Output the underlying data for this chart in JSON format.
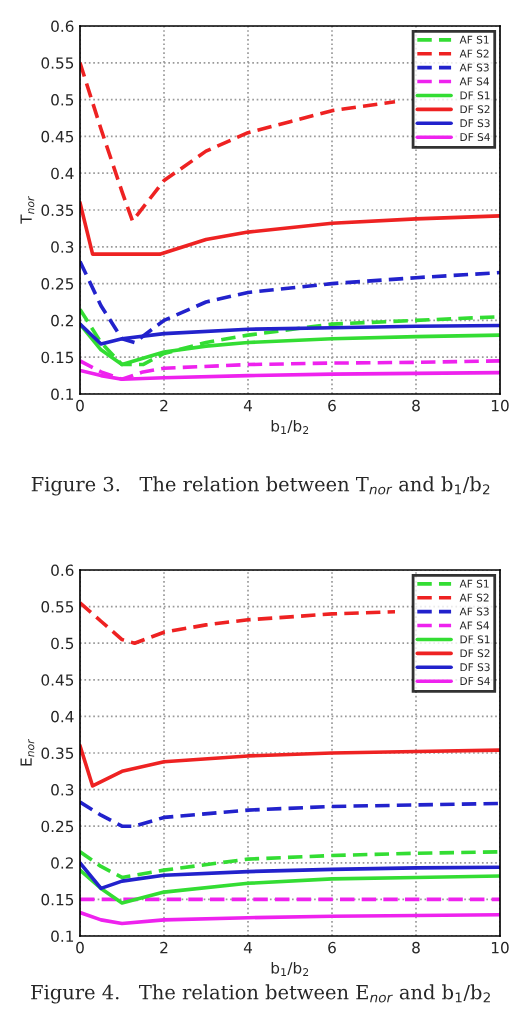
{
  "chart_data": [
    {
      "type": "line",
      "xlabel": "b$_{1}$/b$_{2}$",
      "ylabel": "T$_{nor}$",
      "annotations": [
        "Figure 3.   The relation between T$_{nor}$ and b$_{1}$/b$_{2}$"
      ],
      "xlim": [
        0,
        10
      ],
      "ylim": [
        0.1,
        0.6
      ],
      "xticks": [
        0,
        2,
        4,
        6,
        8,
        10
      ],
      "yticks": [
        0.1,
        0.15,
        0.2,
        0.25,
        0.3,
        0.35,
        0.4,
        0.45,
        0.5,
        0.55,
        0.6
      ],
      "grid": true,
      "legend": "top right",
      "series": [
        {
          "name": "AF S1",
          "color": "#33dd33",
          "line_style": "dashed",
          "x": [
            0,
            0.5,
            1,
            1.5,
            2,
            3,
            4,
            6,
            8,
            10
          ],
          "values": [
            0.215,
            0.17,
            0.14,
            0.14,
            0.155,
            0.17,
            0.18,
            0.195,
            0.2,
            0.205
          ]
        },
        {
          "name": "AF S2",
          "color": "#ee2222",
          "line_style": "dashed",
          "x": [
            0,
            0.5,
            1,
            1.25,
            2,
            3,
            4,
            5,
            6,
            7.5
          ],
          "values": [
            0.55,
            0.46,
            0.375,
            0.335,
            0.39,
            0.43,
            0.455,
            0.47,
            0.485,
            0.497
          ]
        },
        {
          "name": "AF S3",
          "color": "#2222cc",
          "line_style": "dashed",
          "x": [
            0,
            0.5,
            1,
            1.3,
            2,
            3,
            4,
            6,
            8,
            10
          ],
          "values": [
            0.28,
            0.22,
            0.175,
            0.17,
            0.2,
            0.225,
            0.238,
            0.25,
            0.258,
            0.265
          ]
        },
        {
          "name": "AF S4",
          "color": "#ee22ee",
          "line_style": "dashed",
          "x": [
            0,
            0.5,
            1,
            1.5,
            2,
            4,
            6,
            8,
            10
          ],
          "values": [
            0.145,
            0.13,
            0.12,
            0.13,
            0.135,
            0.14,
            0.142,
            0.143,
            0.145
          ]
        },
        {
          "name": "DF S1",
          "color": "#33dd33",
          "line_style": "solid",
          "x": [
            0,
            0.5,
            1,
            2,
            3,
            4,
            6,
            8,
            10
          ],
          "values": [
            0.195,
            0.16,
            0.14,
            0.157,
            0.165,
            0.17,
            0.175,
            0.178,
            0.18
          ]
        },
        {
          "name": "DF S2",
          "color": "#ee2222",
          "line_style": "solid",
          "x": [
            0,
            0.3,
            1,
            1.9,
            3,
            4,
            6,
            8,
            10
          ],
          "values": [
            0.36,
            0.29,
            0.29,
            0.29,
            0.31,
            0.32,
            0.332,
            0.338,
            0.342
          ]
        },
        {
          "name": "DF S3",
          "color": "#2222cc",
          "line_style": "solid",
          "x": [
            0,
            0.5,
            1,
            2,
            4,
            6,
            8,
            10
          ],
          "values": [
            0.195,
            0.168,
            0.175,
            0.182,
            0.188,
            0.19,
            0.192,
            0.193
          ]
        },
        {
          "name": "DF S4",
          "color": "#ee22ee",
          "line_style": "solid",
          "x": [
            0,
            0.5,
            1,
            2,
            4,
            6,
            8,
            10
          ],
          "values": [
            0.132,
            0.125,
            0.12,
            0.122,
            0.125,
            0.127,
            0.128,
            0.129
          ]
        }
      ]
    },
    {
      "type": "line",
      "xlabel": "b$_{1}$/b$_{2}$",
      "ylabel": "E$_{nor}$",
      "annotations": [
        "Figure 4.   The relation between E$_{nor}$ and b$_{1}$/b$_{2}$"
      ],
      "xlim": [
        0,
        10
      ],
      "ylim": [
        0.1,
        0.6
      ],
      "xticks": [
        0,
        2,
        4,
        6,
        8,
        10
      ],
      "yticks": [
        0.1,
        0.15,
        0.2,
        0.25,
        0.3,
        0.35,
        0.4,
        0.45,
        0.5,
        0.55,
        0.6
      ],
      "grid": true,
      "legend": "top right",
      "series": [
        {
          "name": "AF S1",
          "color": "#33dd33",
          "line_style": "dashed",
          "x": [
            0,
            0.5,
            1,
            2,
            4,
            6,
            8,
            10
          ],
          "values": [
            0.215,
            0.195,
            0.18,
            0.19,
            0.205,
            0.21,
            0.213,
            0.215
          ]
        },
        {
          "name": "AF S2",
          "color": "#ee2222",
          "line_style": "dashed",
          "x": [
            0,
            0.5,
            1,
            1.3,
            2,
            3,
            4,
            6,
            7.5
          ],
          "values": [
            0.555,
            0.53,
            0.505,
            0.5,
            0.515,
            0.525,
            0.532,
            0.54,
            0.543
          ]
        },
        {
          "name": "AF S3",
          "color": "#2222cc",
          "line_style": "dashed",
          "x": [
            0,
            0.5,
            1,
            1.3,
            2,
            4,
            6,
            8,
            10
          ],
          "values": [
            0.283,
            0.265,
            0.25,
            0.25,
            0.262,
            0.272,
            0.277,
            0.279,
            0.281
          ]
        },
        {
          "name": "AF S4",
          "color": "#ee22ee",
          "line_style": "dashed",
          "x": [
            0,
            10
          ],
          "values": [
            0.15,
            0.15
          ]
        },
        {
          "name": "DF S1",
          "color": "#33dd33",
          "line_style": "solid",
          "x": [
            0,
            0.5,
            1,
            2,
            4,
            6,
            8,
            10
          ],
          "values": [
            0.19,
            0.165,
            0.145,
            0.16,
            0.172,
            0.178,
            0.18,
            0.182
          ]
        },
        {
          "name": "DF S2",
          "color": "#ee2222",
          "line_style": "solid",
          "x": [
            0,
            0.3,
            1,
            2,
            4,
            6,
            8,
            10
          ],
          "values": [
            0.36,
            0.305,
            0.325,
            0.338,
            0.346,
            0.35,
            0.352,
            0.354
          ]
        },
        {
          "name": "DF S3",
          "color": "#2222cc",
          "line_style": "solid",
          "x": [
            0,
            0.5,
            1,
            2,
            4,
            6,
            8,
            10
          ],
          "values": [
            0.2,
            0.165,
            0.175,
            0.183,
            0.188,
            0.191,
            0.193,
            0.194
          ]
        },
        {
          "name": "DF S4",
          "color": "#ee22ee",
          "line_style": "solid",
          "x": [
            0,
            0.5,
            1,
            2,
            4,
            6,
            8,
            10
          ],
          "values": [
            0.132,
            0.122,
            0.117,
            0.122,
            0.125,
            0.127,
            0.128,
            0.129
          ]
        }
      ]
    }
  ]
}
